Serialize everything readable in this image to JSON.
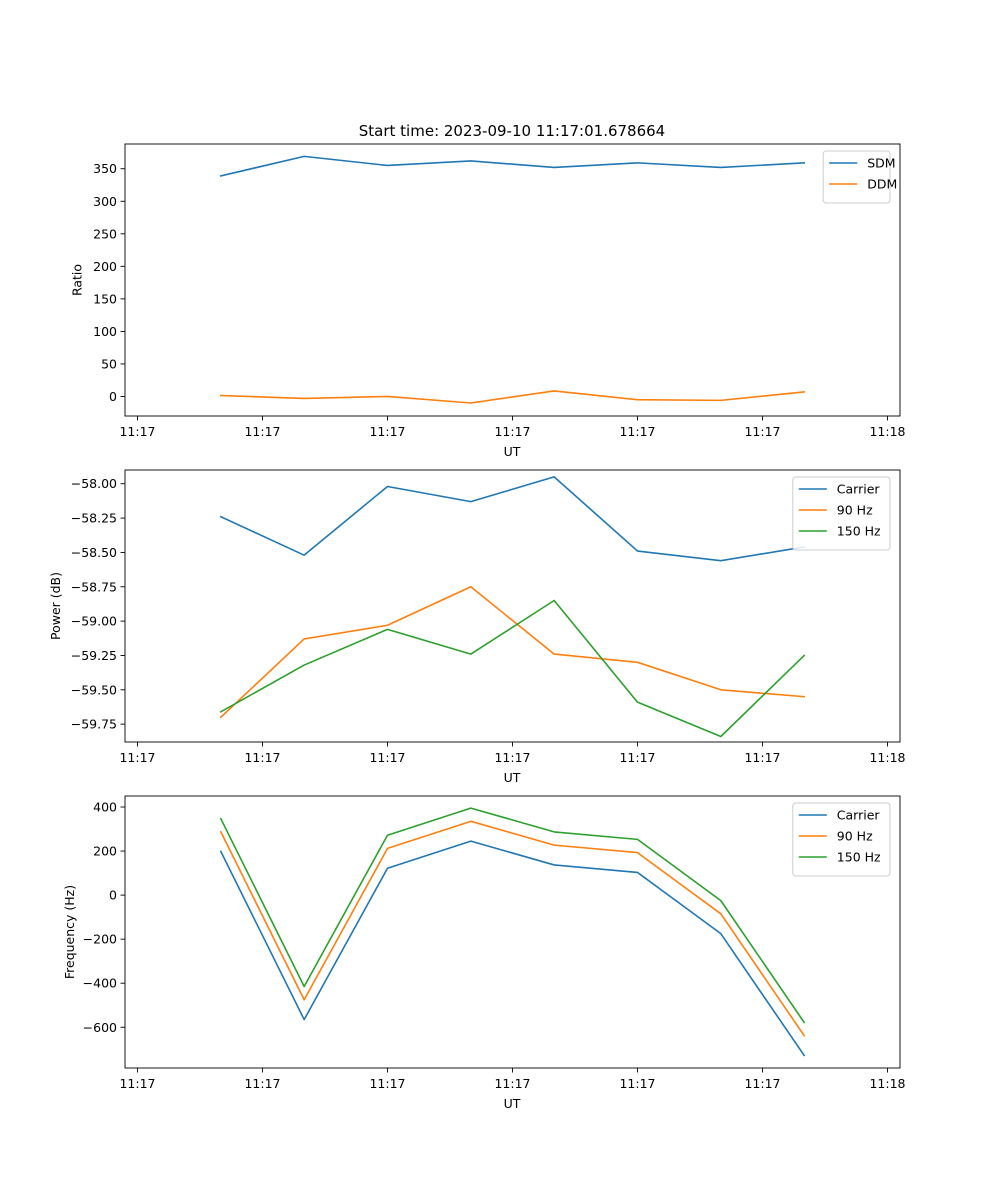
{
  "figure": {
    "title": "Start time: 2023-09-10 11:17:01.678664"
  },
  "chart_data": [
    {
      "type": "line",
      "title": "Start time: 2023-09-10 11:17:01.678664",
      "xlabel": "UT",
      "ylabel": "Ratio",
      "x_tick_labels": [
        "11:17",
        "11:17",
        "11:17",
        "11:17",
        "11:17",
        "11:17",
        "11:18"
      ],
      "y_ticks": [
        0,
        50,
        100,
        150,
        200,
        250,
        300,
        350
      ],
      "ylim": [
        -30,
        388
      ],
      "xlim": [
        -0.15,
        9.15
      ],
      "legend_position": "upper-right",
      "x": [
        1,
        2,
        3,
        4,
        5,
        6,
        7,
        8
      ],
      "series": [
        {
          "name": "SDM",
          "color": "#1f77b4",
          "values": [
            339,
            369,
            355,
            362,
            352,
            359,
            352,
            359
          ]
        },
        {
          "name": "DDM",
          "color": "#ff7f0e",
          "values": [
            1.5,
            -3,
            0,
            -10,
            8.5,
            -5,
            -6,
            7
          ]
        }
      ]
    },
    {
      "type": "line",
      "title": "",
      "xlabel": "UT",
      "ylabel": "Power (dB)",
      "x_tick_labels": [
        "11:17",
        "11:17",
        "11:17",
        "11:17",
        "11:17",
        "11:17",
        "11:18"
      ],
      "y_ticks": [
        -58.0,
        -58.25,
        -58.5,
        -58.75,
        -59.0,
        -59.25,
        -59.5,
        -59.75
      ],
      "y_tick_labels": [
        "−58.00",
        "−58.25",
        "−58.50",
        "−58.75",
        "−59.00",
        "−59.25",
        "−59.50",
        "−59.75"
      ],
      "ylim": [
        -59.88,
        -57.9
      ],
      "xlim": [
        -0.15,
        9.15
      ],
      "legend_position": "upper-right",
      "x": [
        1,
        2,
        3,
        4,
        5,
        6,
        7,
        8
      ],
      "series": [
        {
          "name": "Carrier",
          "color": "#1f77b4",
          "values": [
            -58.24,
            -58.52,
            -58.02,
            -58.13,
            -57.95,
            -58.49,
            -58.56,
            -58.46
          ]
        },
        {
          "name": "90 Hz",
          "color": "#ff7f0e",
          "values": [
            -59.7,
            -59.13,
            -59.03,
            -58.75,
            -59.24,
            -59.3,
            -59.5,
            -59.55
          ]
        },
        {
          "name": "150 Hz",
          "color": "#2ca02c",
          "values": [
            -59.66,
            -59.32,
            -59.06,
            -59.24,
            -58.85,
            -59.59,
            -59.84,
            -59.25
          ]
        }
      ]
    },
    {
      "type": "line",
      "title": "",
      "xlabel": "UT",
      "ylabel": "Frequency (Hz)",
      "x_tick_labels": [
        "11:17",
        "11:17",
        "11:17",
        "11:17",
        "11:17",
        "11:17",
        "11:18"
      ],
      "y_ticks": [
        400,
        200,
        0,
        -200,
        -400,
        -600
      ],
      "y_tick_labels": [
        "400",
        "200",
        "0",
        "−200",
        "−400",
        "−600"
      ],
      "ylim": [
        -785,
        450
      ],
      "xlim": [
        -0.15,
        9.15
      ],
      "legend_position": "upper-right",
      "x": [
        1,
        2,
        3,
        4,
        5,
        6,
        7,
        8
      ],
      "series": [
        {
          "name": "Carrier",
          "color": "#1f77b4",
          "values": [
            198,
            -565,
            122,
            245,
            137,
            103,
            -175,
            -728
          ]
        },
        {
          "name": "90 Hz",
          "color": "#ff7f0e",
          "values": [
            287,
            -475,
            212,
            335,
            227,
            193,
            -85,
            -638
          ]
        },
        {
          "name": "150 Hz",
          "color": "#2ca02c",
          "values": [
            347,
            -415,
            272,
            395,
            287,
            253,
            -25,
            -578
          ]
        }
      ]
    }
  ]
}
